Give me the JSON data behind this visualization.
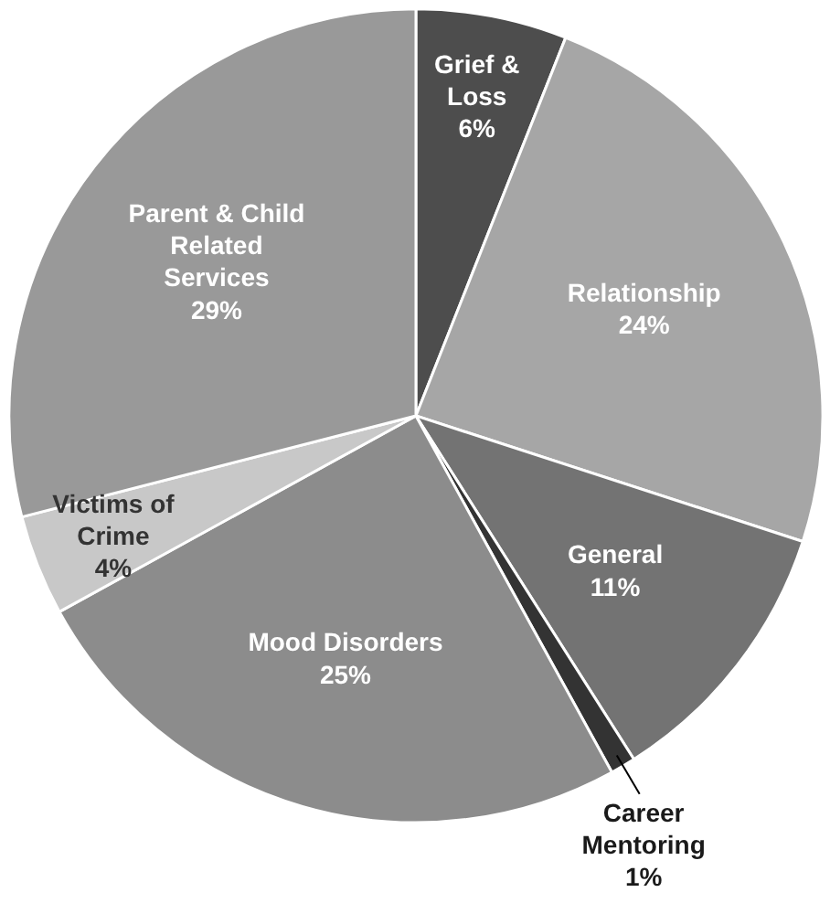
{
  "chart_data": {
    "type": "pie",
    "categories": [
      "Grief & Loss",
      "Relationship",
      "General",
      "Career Mentoring",
      "Mood Disorders",
      "Victims of Crime",
      "Parent & Child Related Services"
    ],
    "values": [
      6,
      24,
      11,
      1,
      25,
      4,
      29
    ],
    "value_labels": [
      "6%",
      "24%",
      "11%",
      "1%",
      "25%",
      "4%",
      "29%"
    ],
    "colors": [
      "#4d4d4d",
      "#a6a6a6",
      "#737373",
      "#333333",
      "#8c8c8c",
      "#c8c8c8",
      "#999999"
    ]
  }
}
